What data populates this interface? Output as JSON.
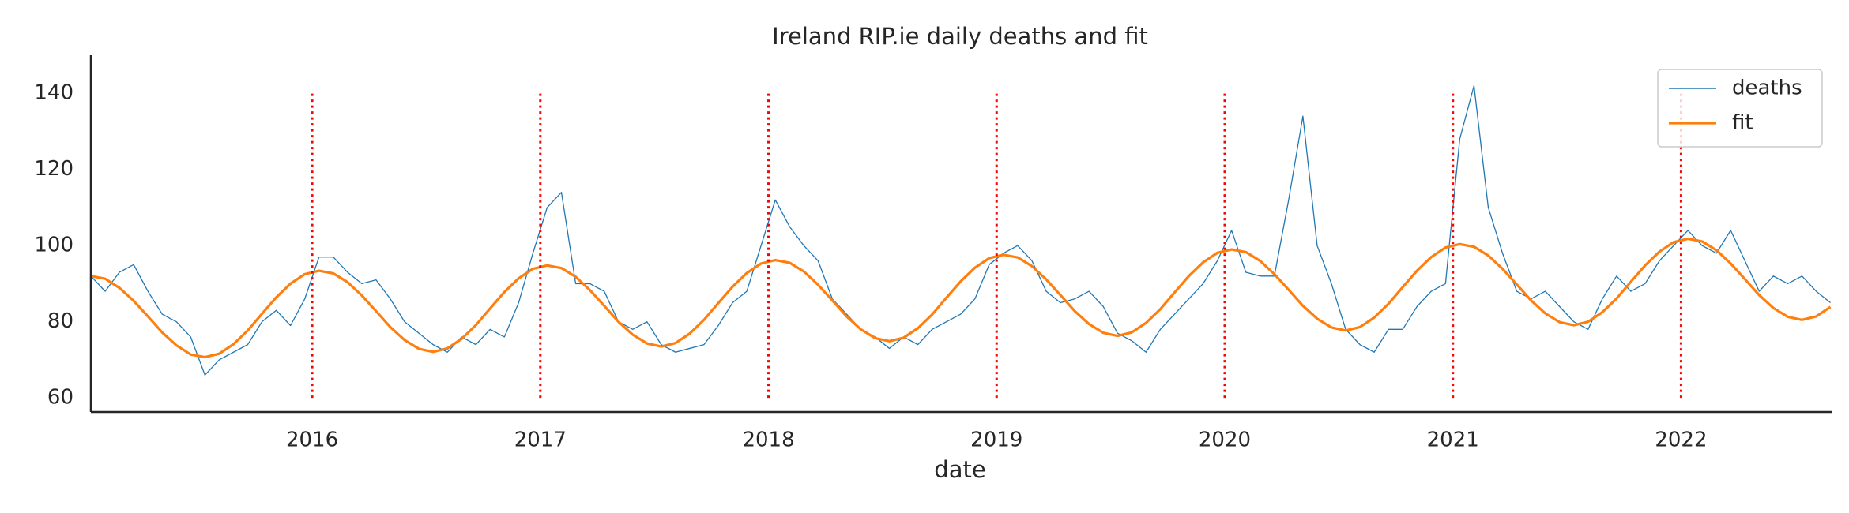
{
  "chart_data": {
    "type": "line",
    "title": "Ireland RIP.ie daily deaths and fit",
    "xlabel": "date",
    "xlim": [
      2015.03,
      2022.66
    ],
    "xticks": [
      2016,
      2017,
      2018,
      2019,
      2020,
      2021,
      2022
    ],
    "ylim": [
      56.3,
      150
    ],
    "yticks": [
      60,
      80,
      100,
      120,
      140
    ],
    "grid": false,
    "legend": "upper right",
    "x": [
      2015.03,
      2015.0925,
      2015.155,
      2015.2175,
      2015.28,
      2015.3425,
      2015.405,
      2015.4675,
      2015.53,
      2015.5925,
      2015.655,
      2015.7175,
      2015.78,
      2015.8425,
      2015.905,
      2015.9675,
      2016.03,
      2016.0925,
      2016.155,
      2016.2175,
      2016.28,
      2016.3425,
      2016.405,
      2016.4675,
      2016.53,
      2016.5925,
      2016.655,
      2016.7175,
      2016.78,
      2016.8425,
      2016.905,
      2016.9675,
      2017.03,
      2017.0925,
      2017.155,
      2017.2175,
      2017.28,
      2017.3425,
      2017.405,
      2017.4675,
      2017.53,
      2017.5925,
      2017.655,
      2017.7175,
      2017.78,
      2017.8425,
      2017.905,
      2017.9675,
      2018.03,
      2018.0925,
      2018.155,
      2018.2175,
      2018.28,
      2018.3425,
      2018.405,
      2018.4675,
      2018.53,
      2018.5925,
      2018.655,
      2018.7175,
      2018.78,
      2018.8425,
      2018.905,
      2018.9675,
      2019.03,
      2019.0925,
      2019.155,
      2019.2175,
      2019.28,
      2019.3425,
      2019.405,
      2019.4675,
      2019.53,
      2019.5925,
      2019.655,
      2019.7175,
      2019.78,
      2019.8425,
      2019.905,
      2019.9675,
      2020.03,
      2020.0925,
      2020.155,
      2020.2175,
      2020.28,
      2020.3425,
      2020.405,
      2020.4675,
      2020.53,
      2020.5925,
      2020.655,
      2020.7175,
      2020.78,
      2020.8425,
      2020.905,
      2020.9675,
      2021.03,
      2021.0925,
      2021.155,
      2021.2175,
      2021.28,
      2021.3425,
      2021.405,
      2021.4675,
      2021.53,
      2021.5925,
      2021.655,
      2021.7175,
      2021.78,
      2021.8425,
      2021.905,
      2021.9675,
      2022.03,
      2022.0925,
      2022.155,
      2022.2175,
      2022.28,
      2022.3425,
      2022.405,
      2022.4675,
      2022.53,
      2022.5925,
      2022.655
    ],
    "series": [
      {
        "name": "deaths",
        "color": "#1f77b4",
        "values": [
          92,
          88,
          93,
          95,
          88,
          82,
          80,
          76,
          66,
          70,
          72,
          74,
          80,
          83,
          79,
          86,
          97,
          97,
          93,
          90,
          91,
          86,
          80,
          77,
          74,
          72,
          76,
          74,
          78,
          76,
          85,
          98,
          110,
          114,
          90,
          90,
          88,
          80,
          78,
          80,
          74,
          72,
          73,
          74,
          79,
          85,
          88,
          100,
          112,
          105,
          100,
          96,
          86,
          82,
          78,
          76,
          73,
          76,
          74,
          78,
          80,
          82,
          86,
          95,
          98,
          100,
          96,
          88,
          85,
          86,
          88,
          84,
          77,
          75,
          72,
          78,
          82,
          86,
          90,
          96,
          104,
          93,
          92,
          92,
          112,
          134,
          100,
          90,
          78,
          74,
          72,
          78,
          78,
          84,
          88,
          90,
          128,
          142,
          110,
          98,
          88,
          86,
          88,
          84,
          80,
          78,
          86,
          92,
          88,
          90,
          96,
          100,
          104,
          100,
          98,
          104,
          96,
          88,
          92,
          90,
          92,
          88,
          85
        ]
      },
      {
        "name": "fit",
        "color": "#ff7f0e",
        "values": [
          92.0,
          91.3,
          88.9,
          85.5,
          81.4,
          77.2,
          73.8,
          71.4,
          70.7,
          71.6,
          74.1,
          77.7,
          82.1,
          86.4,
          90.0,
          92.5,
          93.4,
          92.7,
          90.4,
          86.9,
          82.8,
          78.6,
          75.2,
          72.9,
          72.1,
          73.0,
          75.5,
          79.1,
          83.5,
          87.8,
          91.4,
          93.9,
          94.8,
          94.1,
          91.8,
          88.3,
          84.2,
          80.0,
          76.6,
          74.3,
          73.5,
          74.4,
          76.9,
          80.5,
          84.9,
          89.2,
          92.8,
          95.3,
          96.2,
          95.5,
          93.2,
          89.7,
          85.6,
          81.4,
          78.0,
          75.7,
          74.9,
          75.8,
          78.3,
          81.9,
          86.3,
          90.6,
          94.2,
          96.7,
          97.6,
          96.9,
          94.6,
          91.1,
          87.0,
          82.8,
          79.4,
          77.1,
          76.3,
          77.2,
          79.7,
          83.3,
          87.7,
          92.0,
          95.6,
          98.1,
          99.0,
          98.3,
          96.0,
          92.5,
          88.4,
          84.2,
          80.8,
          78.5,
          77.7,
          78.6,
          81.1,
          84.7,
          89.1,
          93.4,
          97.0,
          99.5,
          100.4,
          99.7,
          97.4,
          93.9,
          89.8,
          85.6,
          82.2,
          79.9,
          79.1,
          80.0,
          82.5,
          86.1,
          90.5,
          94.8,
          98.4,
          100.9,
          101.8,
          101.1,
          98.8,
          95.3,
          91.2,
          87.0,
          83.6,
          81.3,
          80.5,
          81.4,
          83.9
        ]
      }
    ],
    "vlines": {
      "x": [
        2016,
        2017,
        2018,
        2019,
        2020,
        2021,
        2022
      ],
      "ymin": 60,
      "ymax": 140,
      "color": "red"
    }
  }
}
